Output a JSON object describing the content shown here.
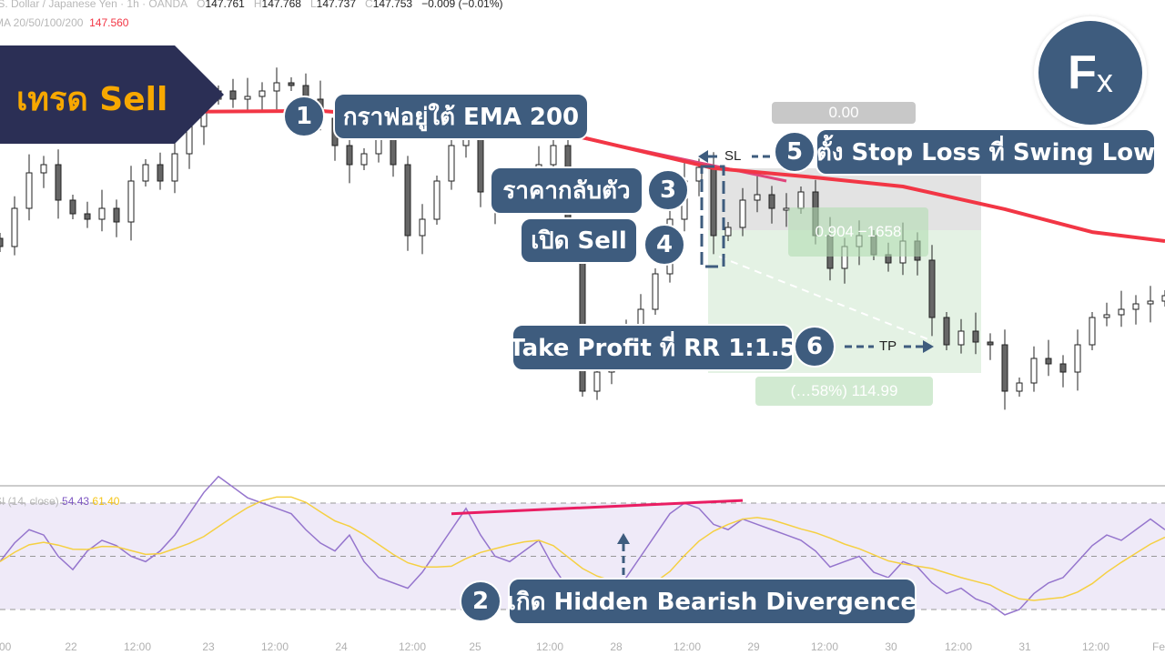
{
  "header": {
    "symbol": ".S. Dollar / Japanese Yen · 1h · OANDA",
    "o_label": "O",
    "o": "147.761",
    "h_label": "H",
    "h": "147.768",
    "l_label": "L",
    "l": "147.737",
    "c_label": "C",
    "c": "147.753",
    "change": "−0.009 (−0.01%)",
    "ema_label": "MA 20/50/100/200",
    "ema_value": "147.560"
  },
  "rsi_header": {
    "label": "SI (14, close)",
    "rsi": "54.43",
    "ma": "61.40"
  },
  "banner": {
    "title": "เทรด Sell"
  },
  "logo": {
    "text": "Fx"
  },
  "annotations": [
    {
      "num": "1",
      "text": "กราฟอยู่ใต้ EMA 200"
    },
    {
      "num": "2",
      "text": "เกิด Hidden Bearish Divergence"
    },
    {
      "num": "3",
      "text": "ราคากลับตัว"
    },
    {
      "num": "4",
      "text": "เปิด Sell"
    },
    {
      "num": "5",
      "text": "ตั้ง Stop Loss ที่ Swing Low"
    },
    {
      "num": "6",
      "text": "Take Profit ที่ RR 1:1.5"
    }
  ],
  "markers": {
    "sl": "SL",
    "tp": "TP"
  },
  "position_labels": {
    "stop": "0.904 −1658",
    "target": "(…58%) 114.99",
    "top": "0.00"
  },
  "colors": {
    "ema": "#f23645",
    "ema_short": "#e0457b",
    "rsi": "#9575cd",
    "rsi_ma": "#f5d042",
    "annotation": "#3e5c7e",
    "banner": "#2b2f55",
    "banner_text": "#f7a800",
    "divergence": "#e91e63"
  },
  "chart_data": {
    "type": "candlestick",
    "title": "",
    "x_ticks": [
      ":00",
      "22",
      "12:00",
      "23",
      "12:00",
      "24",
      "12:00",
      "25",
      "12:00",
      "28",
      "12:00",
      "29",
      "12:00",
      "30",
      "12:00",
      "31",
      "12:00",
      "Fe"
    ],
    "close": [
      147.63,
      147.77,
      147.9,
      147.93,
      147.8,
      147.75,
      147.73,
      147.77,
      147.72,
      147.87,
      147.93,
      147.87,
      147.97,
      148.07,
      148.17,
      148.2,
      148.17,
      148.18,
      148.2,
      148.23,
      148.22,
      148.17,
      148.1,
      148.0,
      147.93,
      147.97,
      148.03,
      147.93,
      147.67,
      147.73,
      147.87,
      148.0,
      148.03,
      147.83,
      147.78,
      147.82,
      147.87,
      147.93,
      148.0,
      147.7,
      147.1,
      147.17,
      147.27,
      147.33,
      147.4,
      147.53,
      147.73,
      147.87,
      147.92,
      147.67,
      147.7,
      147.8,
      147.82,
      147.77,
      147.77,
      147.83,
      147.67,
      147.55,
      147.63,
      147.67,
      147.6,
      147.57,
      147.65,
      147.58,
      147.37,
      147.27,
      147.32,
      147.28,
      147.27,
      147.1,
      147.13,
      147.22,
      147.2,
      147.17,
      147.27,
      147.37,
      147.38,
      147.4,
      147.42,
      147.43,
      147.45
    ],
    "ema200": {
      "index": [
        0,
        22,
        37,
        49,
        56,
        62,
        69,
        75,
        80
      ],
      "value": [
        148.12,
        148.127,
        148.067,
        147.917,
        147.883,
        147.85,
        147.767,
        147.683,
        147.65
      ]
    },
    "ema_short": {
      "index": [
        38,
        54
      ],
      "value": [
        148.05,
        147.87
      ]
    },
    "rsi": {
      "levels": [
        70,
        50,
        30
      ],
      "values": [
        48,
        55,
        60,
        58,
        50,
        45,
        52,
        56,
        54,
        50,
        48,
        52,
        58,
        66,
        74,
        80,
        76,
        72,
        70,
        68,
        66,
        60,
        55,
        52,
        58,
        48,
        42,
        40,
        38,
        44,
        52,
        60,
        68,
        58,
        50,
        48,
        52,
        56,
        46,
        38,
        28,
        30,
        36,
        42,
        50,
        58,
        66,
        70,
        68,
        62,
        60,
        64,
        62,
        60,
        58,
        56,
        52,
        46,
        48,
        50,
        44,
        42,
        48,
        46,
        40,
        36,
        38,
        34,
        32,
        28,
        30,
        36,
        40,
        42,
        48,
        54,
        58,
        56,
        60,
        64,
        60
      ]
    },
    "divergence_line": {
      "index": [
        31,
        51
      ],
      "rsi": [
        66,
        71
      ]
    },
    "grid": false
  }
}
